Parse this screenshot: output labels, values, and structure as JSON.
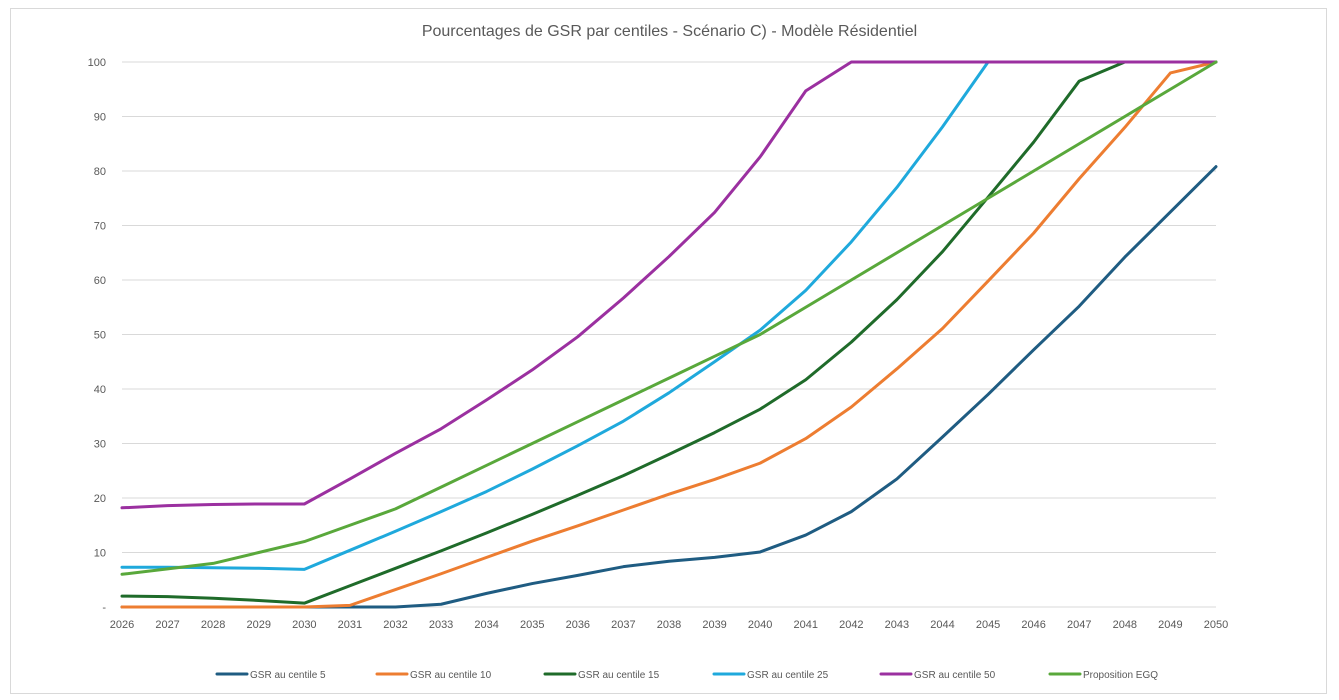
{
  "chart_data": {
    "type": "line",
    "title": "Pourcentages de GSR par centiles - Scénario C) - Modèle Résidentiel",
    "xlabel": "",
    "ylabel": "",
    "ylim": [
      0,
      100
    ],
    "ytick_values": [
      0,
      10,
      20,
      30,
      40,
      50,
      60,
      70,
      80,
      90,
      100
    ],
    "ytick_labels": [
      "-",
      "10",
      "20",
      "30",
      "40",
      "50",
      "60",
      "70",
      "80",
      "90",
      "100"
    ],
    "grid": true,
    "legend_position": "bottom",
    "x": [
      "2026",
      "2027",
      "2028",
      "2029",
      "2030",
      "2031",
      "2032",
      "2033",
      "2034",
      "2035",
      "2036",
      "2037",
      "2038",
      "2039",
      "2040",
      "2041",
      "2042",
      "2043",
      "2044",
      "2045",
      "2046",
      "2047",
      "2048",
      "2049",
      "2050"
    ],
    "series": [
      {
        "name": "GSR au centile 5",
        "color": "#1f5c82",
        "values": [
          0,
          0,
          0,
          0,
          0,
          0,
          0,
          0.5,
          2.5,
          4.3,
          5.8,
          7.4,
          8.4,
          9.1,
          10.1,
          13.2,
          17.5,
          23.5,
          31.2,
          39,
          47.2,
          55.2,
          64.2,
          72.5,
          80.8
        ]
      },
      {
        "name": "GSR au centile 10",
        "color": "#ed7d31",
        "values": [
          0,
          0,
          0,
          0,
          0,
          0.3,
          3.2,
          6.1,
          9.1,
          12.1,
          14.9,
          17.8,
          20.7,
          23.4,
          26.4,
          30.9,
          36.7,
          43.7,
          51.1,
          59.8,
          68.6,
          78.6,
          88,
          98,
          100
        ]
      },
      {
        "name": "GSR au centile 15",
        "color": "#1f6b2a",
        "values": [
          2,
          1.9,
          1.6,
          1.2,
          0.7,
          3.9,
          7.1,
          10.3,
          13.6,
          17,
          20.5,
          24.1,
          28,
          32,
          36.3,
          41.7,
          48.6,
          56.4,
          65.2,
          75.2,
          85.3,
          96.5,
          100,
          100,
          100
        ]
      },
      {
        "name": "GSR au centile 25",
        "color": "#1fa9dc",
        "values": [
          7.3,
          7.3,
          7.2,
          7.1,
          6.9,
          10.4,
          13.9,
          17.5,
          21.2,
          25.3,
          29.6,
          34.1,
          39.3,
          45,
          50.8,
          58.1,
          67,
          77,
          88.1,
          100,
          100,
          100,
          100,
          100,
          100
        ]
      },
      {
        "name": "GSR au centile 50",
        "color": "#9b30a0",
        "values": [
          18.2,
          18.6,
          18.8,
          18.9,
          18.9,
          23.5,
          28.2,
          32.7,
          38,
          43.5,
          49.6,
          56.7,
          64.3,
          72.4,
          82.6,
          94.7,
          100,
          100,
          100,
          100,
          100,
          100,
          100,
          100,
          100
        ]
      },
      {
        "name": "Proposition EGQ",
        "color": "#59a83b",
        "values": [
          6,
          7,
          8,
          10,
          12,
          15,
          18,
          22,
          26,
          30,
          34,
          38,
          42,
          46,
          50,
          55,
          60,
          65,
          70,
          75,
          80,
          85,
          90,
          95,
          100
        ]
      }
    ]
  }
}
